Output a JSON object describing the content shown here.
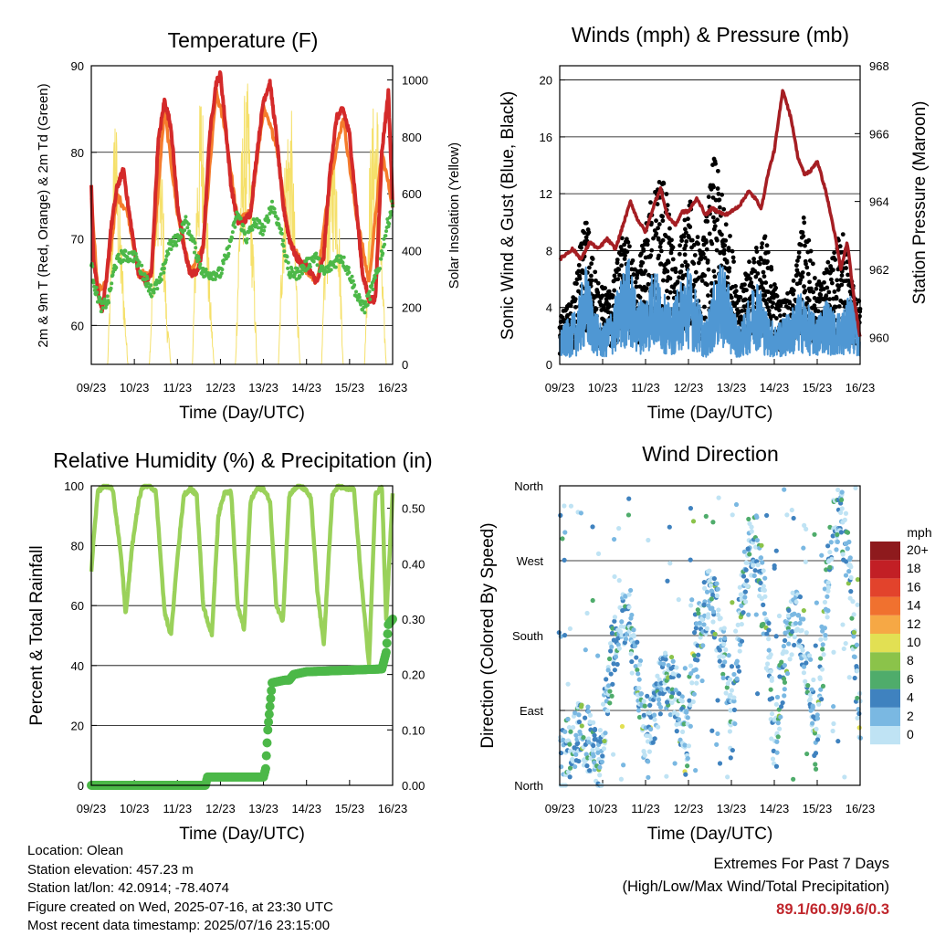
{
  "panels": {
    "temperature": {
      "title": "Temperature (F)",
      "ylabel_left": "2m & 9m T (Red, Orange) & 2m Td (Green)",
      "ylabel_right": "Solar Insolation (Yellow)",
      "xlabel": "Time (Day/UTC)"
    },
    "winds": {
      "title": "Winds (mph) & Pressure (mb)",
      "ylabel_left": "Sonic Wind & Gust (Blue, Black)",
      "ylabel_right": "Station Pressure (Maroon)",
      "xlabel": "Time (Day/UTC)"
    },
    "humidity": {
      "title": "Relative Humidity (%) & Precipitation (in)",
      "ylabel_left": "Percent & Total Rainfall",
      "xlabel": "Time (Day/UTC)"
    },
    "direction": {
      "title": "Wind Direction",
      "ylabel_left": "Direction (Colored By Speed)",
      "xlabel": "Time (Day/UTC)",
      "legend_title": "mph"
    }
  },
  "footer": {
    "location": "Location: Olean",
    "elevation": "Station elevation: 457.23 m",
    "latlon": "Station lat/lon: 42.0914; -78.4074",
    "created": "Figure created on Wed, 2025-07-16, at 23:30 UTC",
    "recent": "Most recent data timestamp: 2025/07/16 23:15:00"
  },
  "extremes": {
    "heading": "Extremes For Past 7 Days",
    "subheading": "(High/Low/Max Wind/Total Precipitation)",
    "values": "89.1/60.9/9.6/0.3"
  },
  "colors": {
    "temp_2m": "#d42a2a",
    "temp_9m": "#f57c2c",
    "dewpoint": "#4cb848",
    "insolation": "#f5e06a",
    "wind": "#4f97d3",
    "gust": "#000000",
    "pressure": "#a51e23",
    "rh": "#9ad15a",
    "precip": "#4cb848"
  },
  "chart_data": [
    {
      "type": "line",
      "id": "temperature",
      "x_ticks": [
        "09/23",
        "10/23",
        "11/23",
        "12/23",
        "13/23",
        "14/23",
        "15/23",
        "16/23"
      ],
      "ylim": [
        55.5,
        90
      ],
      "y_ticks": [
        60,
        70,
        80,
        90
      ],
      "y2lim": [
        0,
        1050
      ],
      "y2_ticks": [
        0,
        200,
        400,
        600,
        800,
        1000
      ],
      "series": [
        {
          "key": "temp2m",
          "axis": "left",
          "color": "#d42a2a",
          "x": [
            0,
            0.05,
            0.15,
            0.25,
            0.35,
            0.45,
            0.6,
            0.75,
            0.85,
            1.0,
            1.1,
            1.25,
            1.4,
            1.55,
            1.7,
            1.85,
            2.0,
            2.15,
            2.3,
            2.45,
            2.6,
            2.75,
            2.9,
            3.0,
            3.1,
            3.25,
            3.4,
            3.55,
            3.7,
            3.85,
            4.0,
            4.15,
            4.3,
            4.45,
            4.6,
            4.75,
            4.9,
            5.0,
            5.1,
            5.25,
            5.4,
            5.55,
            5.7,
            5.85,
            6.0,
            6.15,
            6.3,
            6.45,
            6.6,
            6.75,
            6.9,
            7.0
          ],
          "y": [
            76,
            68,
            64,
            62,
            65,
            71,
            76,
            78,
            74,
            69,
            66,
            65,
            66,
            81,
            86,
            83,
            74,
            69,
            66,
            66,
            69,
            82,
            88,
            89,
            84,
            76,
            72,
            72,
            73,
            80,
            86,
            88,
            82,
            74,
            70,
            68,
            67,
            67,
            66,
            65,
            68,
            78,
            84,
            85,
            82,
            74,
            66,
            63,
            63,
            80,
            87,
            74
          ]
        },
        {
          "key": "temp9m",
          "axis": "left",
          "color": "#f57c2c",
          "x": [
            0,
            0.15,
            0.35,
            0.6,
            0.85,
            1.1,
            1.4,
            1.7,
            2.0,
            2.3,
            2.6,
            2.9,
            3.1,
            3.4,
            3.7,
            4.0,
            4.3,
            4.6,
            4.9,
            5.25,
            5.55,
            5.85,
            6.15,
            6.45,
            6.75,
            7.0
          ],
          "y": [
            75,
            64,
            65,
            75,
            73,
            66,
            66,
            85,
            73,
            66,
            69,
            87,
            83,
            72,
            73,
            85,
            81,
            70,
            67,
            65,
            77,
            84,
            73,
            65,
            80,
            74
          ]
        },
        {
          "key": "dewpoint",
          "axis": "left",
          "color": "#4cb848",
          "x": [
            0,
            0.1,
            0.25,
            0.4,
            0.55,
            0.7,
            0.85,
            1.0,
            1.2,
            1.4,
            1.6,
            1.8,
            2.0,
            2.2,
            2.4,
            2.6,
            2.8,
            3.0,
            3.2,
            3.4,
            3.6,
            3.8,
            4.0,
            4.2,
            4.4,
            4.6,
            4.8,
            5.0,
            5.2,
            5.4,
            5.6,
            5.8,
            6.0,
            6.2,
            6.35,
            6.5,
            6.7,
            6.85,
            7.0
          ],
          "y": [
            67,
            64,
            62,
            63,
            67,
            68,
            68,
            68,
            66,
            64,
            65,
            69,
            70,
            72,
            69,
            66,
            66,
            66,
            69,
            73,
            70,
            72,
            71,
            74,
            71,
            66,
            66,
            67,
            68,
            66,
            67,
            68,
            66,
            63,
            62,
            64,
            67,
            71,
            74
          ]
        },
        {
          "key": "insolation",
          "axis": "right",
          "color": "#f5e06a",
          "x": [
            0,
            0.38,
            0.45,
            0.55,
            0.65,
            0.75,
            0.85,
            1.35,
            1.45,
            1.55,
            1.65,
            1.75,
            1.85,
            2.35,
            2.45,
            2.55,
            2.65,
            2.75,
            2.85,
            3.35,
            3.45,
            3.55,
            3.65,
            3.75,
            3.85,
            4.35,
            4.45,
            4.55,
            4.65,
            4.75,
            4.85,
            5.35,
            5.45,
            5.55,
            5.65,
            5.75,
            5.85,
            6.35,
            6.45,
            6.55,
            6.65,
            6.75,
            6.85,
            7.0
          ],
          "y": [
            0,
            0,
            380,
            980,
            600,
            300,
            0,
            0,
            500,
            920,
            700,
            200,
            0,
            0,
            700,
            1020,
            800,
            300,
            0,
            0,
            650,
            950,
            1000,
            500,
            0,
            0,
            600,
            880,
            900,
            400,
            0,
            0,
            550,
            720,
            900,
            600,
            0,
            0,
            700,
            920,
            950,
            400,
            0,
            0
          ]
        }
      ]
    },
    {
      "type": "scatter",
      "id": "winds",
      "x_ticks": [
        "09/23",
        "10/23",
        "11/23",
        "12/23",
        "13/23",
        "14/23",
        "15/23",
        "16/23"
      ],
      "ylim": [
        0,
        21
      ],
      "y_ticks": [
        0,
        4,
        8,
        12,
        16,
        20
      ],
      "y2lim": [
        959.2,
        968
      ],
      "y2_ticks": [
        960,
        962,
        964,
        966,
        968
      ],
      "series": [
        {
          "key": "pressure",
          "axis": "right",
          "color": "#a51e23",
          "x": [
            0,
            0.3,
            0.5,
            0.7,
            0.9,
            1.1,
            1.3,
            1.5,
            1.65,
            1.8,
            2.0,
            2.2,
            2.35,
            2.5,
            2.7,
            2.85,
            3.0,
            3.2,
            3.4,
            3.55,
            3.7,
            3.85,
            4.0,
            4.2,
            4.4,
            4.55,
            4.7,
            4.85,
            5.0,
            5.2,
            5.4,
            5.55,
            5.7,
            5.85,
            6.0,
            6.2,
            6.4,
            6.55,
            6.7,
            6.85,
            7.0
          ],
          "y": [
            962.3,
            962.6,
            962.3,
            962.8,
            962.6,
            962.9,
            962.6,
            963.4,
            964.0,
            963.5,
            963.1,
            963.9,
            964.4,
            963.6,
            963.3,
            963.7,
            963.7,
            964.1,
            963.6,
            963.8,
            963.7,
            963.6,
            963.7,
            963.9,
            964.3,
            964.1,
            963.8,
            964.8,
            965.5,
            967.3,
            966.4,
            965.3,
            964.8,
            964.9,
            965.2,
            964.3,
            963.1,
            962.0,
            962.8,
            961.2,
            960.0
          ]
        },
        {
          "key": "wind",
          "axis": "left",
          "color": "#4f97d3",
          "x": [
            0,
            0.2,
            0.4,
            0.6,
            0.8,
            1.0,
            1.2,
            1.4,
            1.6,
            1.8,
            2.0,
            2.2,
            2.4,
            2.6,
            2.8,
            3.0,
            3.2,
            3.4,
            3.6,
            3.8,
            4.0,
            4.2,
            4.4,
            4.6,
            4.8,
            5.0,
            5.2,
            5.4,
            5.6,
            5.8,
            6.0,
            6.2,
            6.4,
            6.6,
            6.8,
            7.0
          ],
          "y": [
            1.8,
            2.5,
            3.0,
            5.5,
            3.2,
            2.0,
            3.0,
            4.5,
            6.0,
            3.5,
            3.8,
            5.5,
            4.0,
            3.0,
            4.5,
            5.5,
            3.8,
            2.2,
            4.5,
            5.8,
            3.5,
            2.0,
            3.5,
            5.0,
            3.0,
            2.2,
            2.5,
            3.0,
            4.0,
            3.2,
            2.5,
            3.8,
            2.8,
            3.0,
            4.0,
            2.0
          ]
        },
        {
          "key": "gust",
          "axis": "left",
          "color": "#000000",
          "x": [
            0,
            0.3,
            0.6,
            0.9,
            1.2,
            1.5,
            1.8,
            2.1,
            2.4,
            2.7,
            3.0,
            3.3,
            3.6,
            3.9,
            4.2,
            4.5,
            4.8,
            5.1,
            5.4,
            5.7,
            6.0,
            6.3,
            6.6,
            6.9
          ],
          "y": [
            3.0,
            4.0,
            9.5,
            5.0,
            4.5,
            8.5,
            5.5,
            10.0,
            12.5,
            6.0,
            10.5,
            7.0,
            13.0,
            9.0,
            4.5,
            7.0,
            8.0,
            4.0,
            4.5,
            9.5,
            5.0,
            6.5,
            8.5,
            4.0
          ]
        }
      ]
    },
    {
      "type": "line",
      "id": "humidity",
      "x_ticks": [
        "09/23",
        "10/23",
        "11/23",
        "12/23",
        "13/23",
        "14/23",
        "15/23",
        "16/23"
      ],
      "ylim": [
        0,
        100
      ],
      "y_ticks": [
        0,
        20,
        40,
        60,
        80,
        100
      ],
      "y2lim": [
        0,
        0.5405
      ],
      "y2_ticks": [
        "0.00",
        "0.10",
        "0.20",
        "0.30",
        "0.40",
        "0.50"
      ],
      "series": [
        {
          "key": "rh",
          "axis": "left",
          "color": "#9ad15a",
          "x": [
            0,
            0.05,
            0.15,
            0.3,
            0.5,
            0.7,
            0.8,
            0.95,
            1.1,
            1.2,
            1.35,
            1.5,
            1.7,
            1.85,
            2.0,
            2.15,
            2.3,
            2.45,
            2.6,
            2.8,
            2.95,
            3.1,
            3.25,
            3.4,
            3.55,
            3.7,
            3.85,
            4.0,
            4.15,
            4.3,
            4.45,
            4.6,
            4.8,
            4.95,
            5.1,
            5.25,
            5.4,
            5.6,
            5.75,
            5.9,
            6.1,
            6.25,
            6.45,
            6.6,
            6.75,
            6.85,
            7.0
          ],
          "y": [
            71,
            82,
            98,
            100,
            99,
            75,
            57,
            80,
            95,
            100,
            100,
            98,
            58,
            50,
            76,
            97,
            99,
            97,
            60,
            50,
            90,
            98,
            98,
            60,
            52,
            95,
            99,
            99,
            95,
            60,
            55,
            97,
            100,
            99,
            96,
            65,
            47,
            97,
            100,
            99,
            99,
            72,
            40,
            97,
            100,
            55,
            97
          ]
        },
        {
          "key": "precip",
          "axis": "right",
          "color": "#4cb848",
          "x": [
            0,
            2.65,
            2.7,
            2.9,
            4.0,
            4.05,
            4.1,
            4.2,
            4.5,
            4.6,
            4.7,
            5.0,
            6.75,
            6.85,
            6.9,
            7.0
          ],
          "y": [
            0,
            0,
            0.015,
            0.015,
            0.015,
            0.03,
            0.1,
            0.185,
            0.19,
            0.19,
            0.2,
            0.205,
            0.21,
            0.24,
            0.29,
            0.3
          ]
        }
      ]
    },
    {
      "type": "scatter",
      "id": "direction",
      "x_ticks": [
        "09/23",
        "10/23",
        "11/23",
        "12/23",
        "13/23",
        "14/23",
        "15/23",
        "16/23"
      ],
      "ylim": [
        0,
        360
      ],
      "y_ticks": [
        "North",
        "East",
        "South",
        "West",
        "North"
      ],
      "legend": {
        "labels": [
          "0",
          "2",
          "4",
          "6",
          "8",
          "10",
          "12",
          "14",
          "16",
          "18",
          "20+"
        ],
        "colors": [
          "#bfe3f4",
          "#7ab8e2",
          "#3f82bf",
          "#4fac6b",
          "#8bc34a",
          "#e2e053",
          "#f6a845",
          "#f0712f",
          "#e2432c",
          "#c21f25",
          "#8e1a1d"
        ]
      }
    }
  ]
}
